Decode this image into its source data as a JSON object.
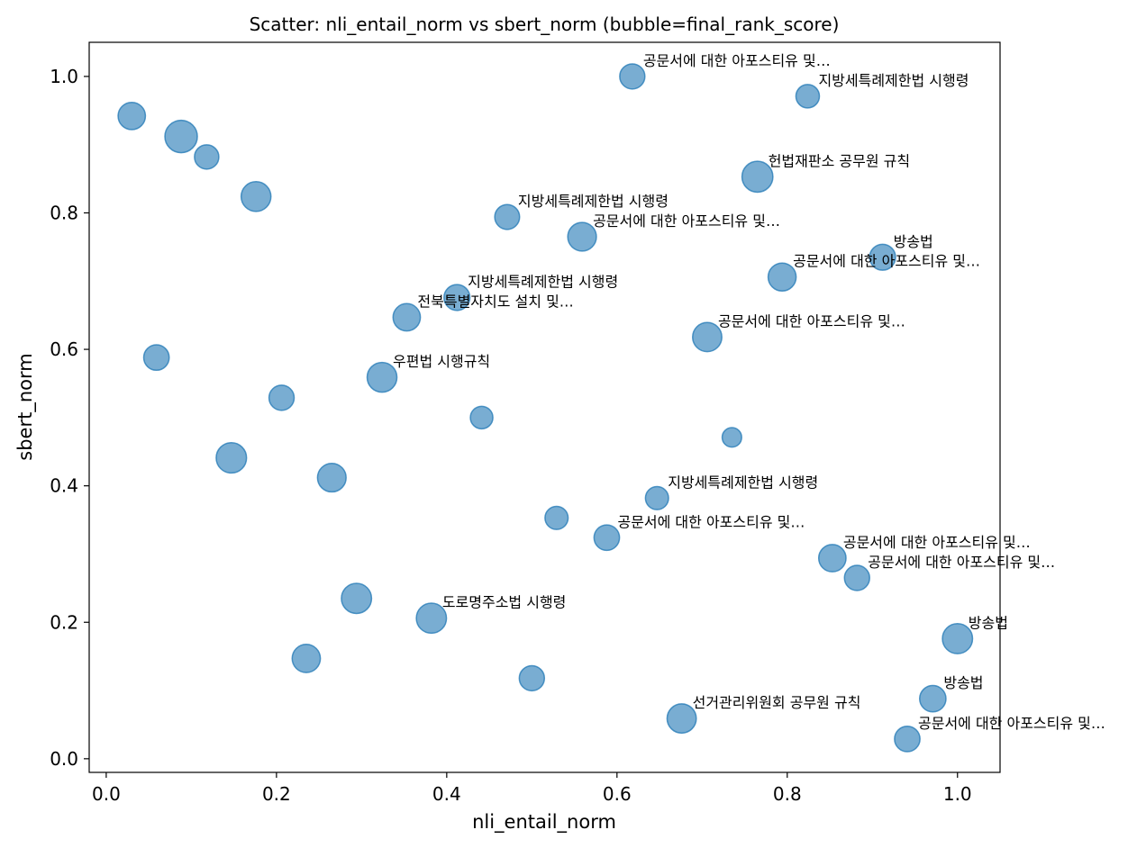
{
  "chart_data": {
    "type": "scatter",
    "title": "Scatter: nli_entail_norm vs sbert_norm (bubble=final_rank_score)",
    "xlabel": "nli_entail_norm",
    "ylabel": "sbert_norm",
    "xlim": [
      -0.02,
      1.05
    ],
    "ylim": [
      -0.02,
      1.05
    ],
    "xticks": [
      "0.0",
      "0.2",
      "0.4",
      "0.6",
      "0.8",
      "1.0"
    ],
    "yticks": [
      "0.0",
      "0.2",
      "0.4",
      "0.6",
      "0.8",
      "1.0"
    ],
    "grid": false,
    "color": "#1f77b4",
    "points": [
      {
        "x": 0.618,
        "y": 1.0,
        "size": 0.4,
        "label": "공문서에 대한 아포스티유 및…"
      },
      {
        "x": 0.824,
        "y": 0.971,
        "size": 0.3,
        "label": "지방세특례제한법 시행령"
      },
      {
        "x": 0.03,
        "y": 0.942,
        "size": 0.55,
        "label": ""
      },
      {
        "x": 0.088,
        "y": 0.912,
        "size": 1.0,
        "label": ""
      },
      {
        "x": 0.118,
        "y": 0.882,
        "size": 0.35,
        "label": ""
      },
      {
        "x": 0.765,
        "y": 0.853,
        "size": 0.85,
        "label": "헌법재판소 공무원 규칙"
      },
      {
        "x": 0.176,
        "y": 0.824,
        "size": 0.75,
        "label": ""
      },
      {
        "x": 0.471,
        "y": 0.794,
        "size": 0.38,
        "label": "지방세특례제한법 시행령"
      },
      {
        "x": 0.559,
        "y": 0.765,
        "size": 0.65,
        "label": "공문서에 대한 아포스티유 및…"
      },
      {
        "x": 0.912,
        "y": 0.735,
        "size": 0.45,
        "label": "방송법"
      },
      {
        "x": 0.794,
        "y": 0.706,
        "size": 0.6,
        "label": "공문서에 대한 아포스티유 및…"
      },
      {
        "x": 0.412,
        "y": 0.676,
        "size": 0.45,
        "label": "지방세특례제한법 시행령"
      },
      {
        "x": 0.353,
        "y": 0.647,
        "size": 0.55,
        "label": "전북특별자치도 설치 및…"
      },
      {
        "x": 0.706,
        "y": 0.618,
        "size": 0.7,
        "label": "공문서에 대한 아포스티유 및…"
      },
      {
        "x": 0.059,
        "y": 0.588,
        "size": 0.42,
        "label": ""
      },
      {
        "x": 0.324,
        "y": 0.559,
        "size": 0.75,
        "label": "우편법 시행규칙"
      },
      {
        "x": 0.206,
        "y": 0.529,
        "size": 0.4,
        "label": ""
      },
      {
        "x": 0.441,
        "y": 0.5,
        "size": 0.25,
        "label": ""
      },
      {
        "x": 0.735,
        "y": 0.471,
        "size": 0.12,
        "label": ""
      },
      {
        "x": 0.147,
        "y": 0.441,
        "size": 0.8,
        "label": ""
      },
      {
        "x": 0.265,
        "y": 0.412,
        "size": 0.65,
        "label": ""
      },
      {
        "x": 0.647,
        "y": 0.382,
        "size": 0.28,
        "label": "지방세특례제한법 시행령"
      },
      {
        "x": 0.529,
        "y": 0.353,
        "size": 0.28,
        "label": ""
      },
      {
        "x": 0.588,
        "y": 0.324,
        "size": 0.42,
        "label": "공문서에 대한 아포스티유 및…"
      },
      {
        "x": 0.853,
        "y": 0.294,
        "size": 0.55,
        "label": "공문서에 대한 아포스티유 및…"
      },
      {
        "x": 0.882,
        "y": 0.265,
        "size": 0.4,
        "label": "공문서에 대한 아포스티유 및…"
      },
      {
        "x": 0.294,
        "y": 0.235,
        "size": 0.78,
        "label": ""
      },
      {
        "x": 0.382,
        "y": 0.206,
        "size": 0.78,
        "label": "도로명주소법 시행령"
      },
      {
        "x": 1.0,
        "y": 0.176,
        "size": 0.78,
        "label": "방송법"
      },
      {
        "x": 0.235,
        "y": 0.147,
        "size": 0.62,
        "label": ""
      },
      {
        "x": 0.5,
        "y": 0.118,
        "size": 0.4,
        "label": ""
      },
      {
        "x": 0.971,
        "y": 0.088,
        "size": 0.48,
        "label": "방송법"
      },
      {
        "x": 0.676,
        "y": 0.059,
        "size": 0.7,
        "label": "선거관리위원회 공무원 규칙"
      },
      {
        "x": 0.941,
        "y": 0.029,
        "size": 0.42,
        "label": "공문서에 대한 아포스티유 및…"
      }
    ]
  }
}
